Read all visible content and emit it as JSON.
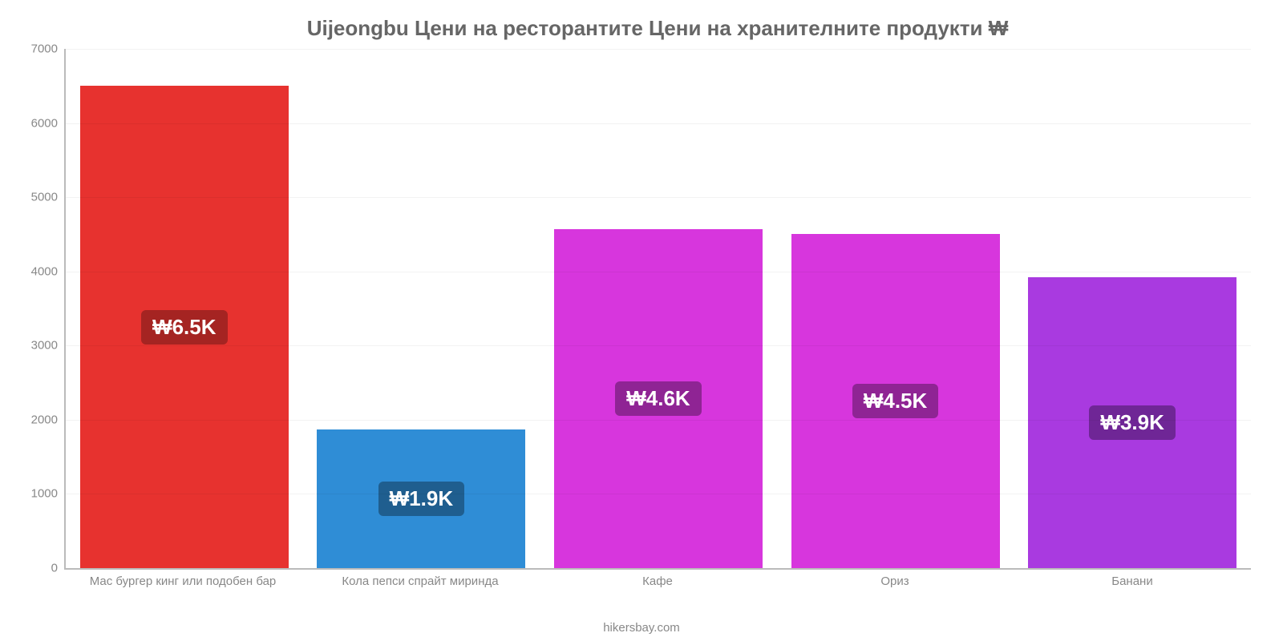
{
  "chart": {
    "type": "bar",
    "title": "Uijeongbu Цени на ресторантите Цени на хранителните продукти ₩",
    "title_fontsize": 26,
    "title_color": "#666666",
    "background_color": "#ffffff",
    "axis_color": "#bbbbbb",
    "grid_color": "rgba(0,0,0,0.05)",
    "tick_label_color": "#888888",
    "tick_fontsize": 15,
    "ylim": [
      0,
      7000
    ],
    "ytick_step": 1000,
    "yticks": [
      {
        "value": 0,
        "label": "0"
      },
      {
        "value": 1000,
        "label": "1000"
      },
      {
        "value": 2000,
        "label": "2000"
      },
      {
        "value": 3000,
        "label": "3000"
      },
      {
        "value": 4000,
        "label": "4000"
      },
      {
        "value": 5000,
        "label": "5000"
      },
      {
        "value": 6000,
        "label": "6000"
      },
      {
        "value": 7000,
        "label": "7000"
      }
    ],
    "bar_width": 0.88,
    "bars": [
      {
        "category": "Мас бургер кинг или подобен бар",
        "value": 6500,
        "display_label": "₩6.5K",
        "bar_color": "#e7322f",
        "label_bg": "#a52422",
        "label_text_color": "#ffffff"
      },
      {
        "category": "Кола пепси спрайт миринда",
        "value": 1870,
        "display_label": "₩1.9K",
        "bar_color": "#2f8dd6",
        "label_bg": "#1f5e8f",
        "label_text_color": "#ffffff"
      },
      {
        "category": "Кафе",
        "value": 4570,
        "display_label": "₩4.6K",
        "bar_color": "#d736dd",
        "label_bg": "#8f2494",
        "label_text_color": "#ffffff"
      },
      {
        "category": "Ориз",
        "value": 4500,
        "display_label": "₩4.5K",
        "bar_color": "#d736dd",
        "label_bg": "#8f2494",
        "label_text_color": "#ffffff"
      },
      {
        "category": "Банани",
        "value": 3920,
        "display_label": "₩3.9K",
        "bar_color": "#a93ae0",
        "label_bg": "#6f2696",
        "label_text_color": "#ffffff"
      }
    ],
    "source_text": "hikersbay.com",
    "source_color": "#888888",
    "label_fontsize": 26,
    "label_radius": 6
  }
}
